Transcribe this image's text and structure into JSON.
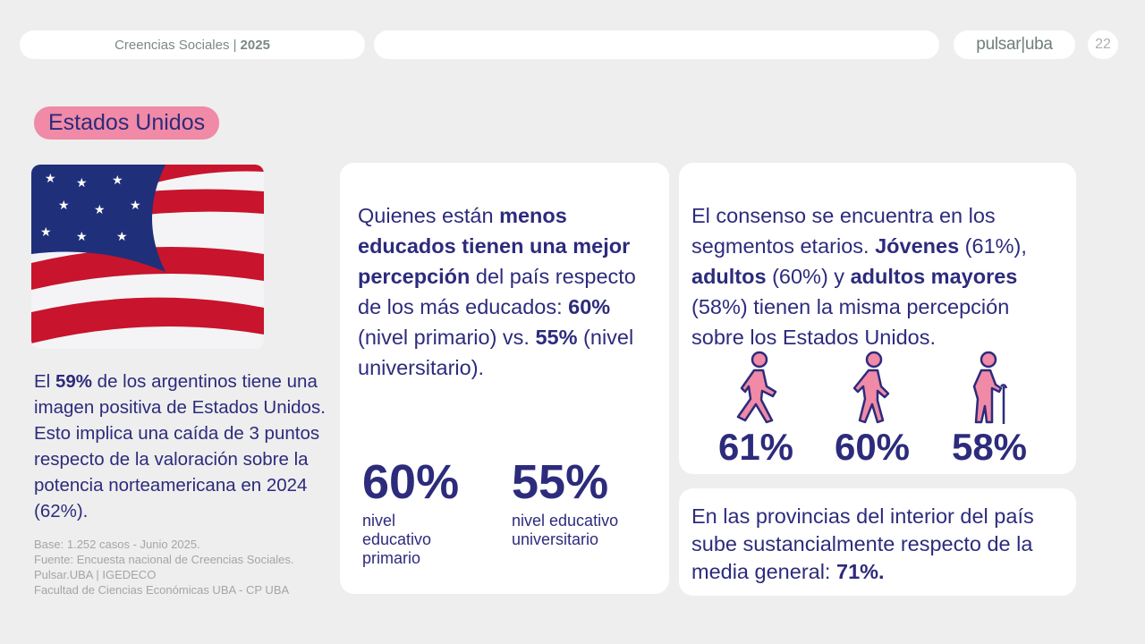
{
  "header": {
    "title": "Creencias Sociales |",
    "year": "2025",
    "logo": "pulsar|uba",
    "page": "22"
  },
  "section_badge": "Estados Unidos",
  "colors": {
    "navy": "#2d2b7c",
    "pink": "#f08aa6",
    "background": "#eeeeee"
  },
  "lead": {
    "p1": "El ",
    "b1": "59%",
    "p2": " de los argentinos tiene una imagen positiva de Estados Unidos. Esto implica una caída de 3 puntos respecto de la valoración sobre la potencia norteamericana en 2024 (62%)."
  },
  "source": [
    "Base: 1.252 casos - Junio 2025.",
    "Fuente: Encuesta nacional de Creencias Sociales.",
    "Pulsar.UBA | IGEDECO",
    "Facultad de Ciencias Económicas UBA - CP UBA"
  ],
  "education_card": {
    "p1": "Quienes están ",
    "b1": "menos educados tienen una mejor percepción",
    "p2": " del país respecto de los más educados: ",
    "b2": "60%",
    "p3": " (nivel primario) vs. ",
    "b3": "55%",
    "p4": " (nivel universitario).",
    "stats": [
      {
        "value": "60%",
        "label": "nivel educativo primario"
      },
      {
        "value": "55%",
        "label": "nivel educativo universitario"
      }
    ]
  },
  "age_card": {
    "p1": "El consenso se encuentra en los segmentos etarios. ",
    "b1": "Jóvenes",
    "p2": " (61%), ",
    "b2": "adultos",
    "p3": " (60%) y ",
    "b3": "adultos mayores",
    "p4": " (58%) tienen la misma percepción sobre los Estados Unidos.",
    "groups": [
      {
        "icon": "young-walking-person-icon",
        "value": "61%"
      },
      {
        "icon": "adult-walking-person-icon",
        "value": "60%"
      },
      {
        "icon": "elderly-person-with-cane-icon",
        "value": "58%"
      }
    ]
  },
  "provinces_card": {
    "p1": "En las provincias del interior del país sube sustancialmente respecto de la media general: ",
    "b1": "71%."
  }
}
